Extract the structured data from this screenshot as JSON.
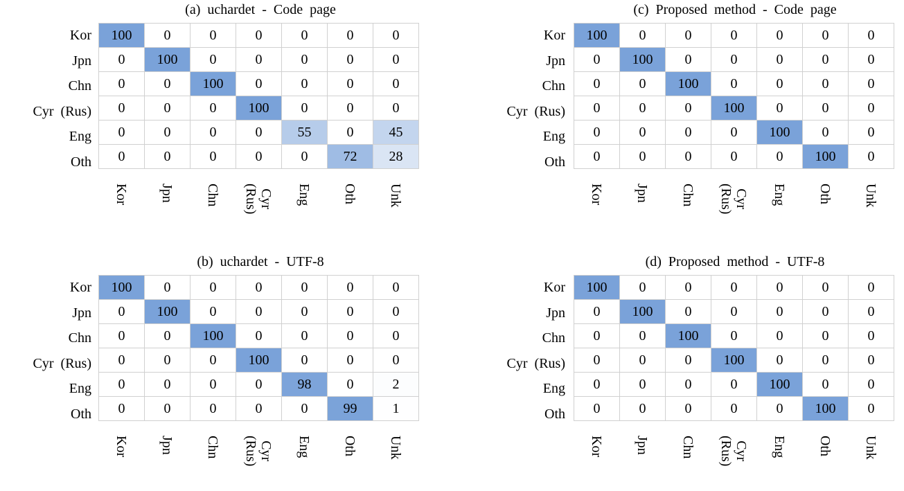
{
  "chart_data": [
    {
      "type": "heatmap",
      "title": "(a)  uchardet  -  Code  page",
      "rows": [
        "Kor",
        "Jpn",
        "Chn",
        "Cyr  (Rus)",
        "Eng",
        "Oth"
      ],
      "cols": [
        "Kor",
        "Jpn",
        "Chn",
        "Cyr\n(Rus)",
        "Eng",
        "Oth",
        "Unk"
      ],
      "values": [
        [
          100,
          0,
          0,
          0,
          0,
          0,
          0
        ],
        [
          0,
          100,
          0,
          0,
          0,
          0,
          0
        ],
        [
          0,
          0,
          100,
          0,
          0,
          0,
          0
        ],
        [
          0,
          0,
          0,
          100,
          0,
          0,
          0
        ],
        [
          0,
          0,
          0,
          0,
          55,
          0,
          45
        ],
        [
          0,
          0,
          0,
          0,
          0,
          72,
          28
        ]
      ]
    },
    {
      "type": "heatmap",
      "title": "(b)  uchardet  -  UTF-8",
      "rows": [
        "Kor",
        "Jpn",
        "Chn",
        "Cyr  (Rus)",
        "Eng",
        "Oth"
      ],
      "cols": [
        "Kor",
        "Jpn",
        "Chn",
        "Cyr\n(Rus)",
        "Eng",
        "Oth",
        "Unk"
      ],
      "values": [
        [
          100,
          0,
          0,
          0,
          0,
          0,
          0
        ],
        [
          0,
          100,
          0,
          0,
          0,
          0,
          0
        ],
        [
          0,
          0,
          100,
          0,
          0,
          0,
          0
        ],
        [
          0,
          0,
          0,
          100,
          0,
          0,
          0
        ],
        [
          0,
          0,
          0,
          0,
          98,
          0,
          2
        ],
        [
          0,
          0,
          0,
          0,
          0,
          99,
          1
        ]
      ]
    },
    {
      "type": "heatmap",
      "title": "(c)  Proposed  method  -  Code  page",
      "rows": [
        "Kor",
        "Jpn",
        "Chn",
        "Cyr  (Rus)",
        "Eng",
        "Oth"
      ],
      "cols": [
        "Kor",
        "Jpn",
        "Chn",
        "Cyr\n(Rus)",
        "Eng",
        "Oth",
        "Unk"
      ],
      "values": [
        [
          100,
          0,
          0,
          0,
          0,
          0,
          0
        ],
        [
          0,
          100,
          0,
          0,
          0,
          0,
          0
        ],
        [
          0,
          0,
          100,
          0,
          0,
          0,
          0
        ],
        [
          0,
          0,
          0,
          100,
          0,
          0,
          0
        ],
        [
          0,
          0,
          0,
          0,
          100,
          0,
          0
        ],
        [
          0,
          0,
          0,
          0,
          0,
          100,
          0
        ]
      ]
    },
    {
      "type": "heatmap",
      "title": "(d)  Proposed  method  -  UTF-8",
      "rows": [
        "Kor",
        "Jpn",
        "Chn",
        "Cyr  (Rus)",
        "Eng",
        "Oth"
      ],
      "cols": [
        "Kor",
        "Jpn",
        "Chn",
        "Cyr\n(Rus)",
        "Eng",
        "Oth",
        "Unk"
      ],
      "values": [
        [
          100,
          0,
          0,
          0,
          0,
          0,
          0
        ],
        [
          0,
          100,
          0,
          0,
          0,
          0,
          0
        ],
        [
          0,
          0,
          100,
          0,
          0,
          0,
          0
        ],
        [
          0,
          0,
          0,
          100,
          0,
          0,
          0
        ],
        [
          0,
          0,
          0,
          0,
          100,
          0,
          0
        ],
        [
          0,
          0,
          0,
          0,
          0,
          100,
          0
        ]
      ]
    }
  ],
  "colors": {
    "cell_max": "#7aa2d9",
    "cell_min": "#ffffff"
  }
}
